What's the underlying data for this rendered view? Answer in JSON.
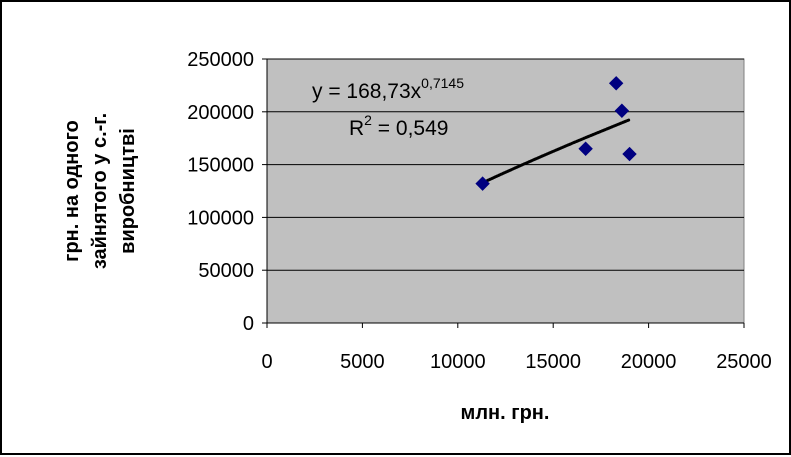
{
  "colors": {
    "plot_background": "#c0c0c0",
    "gridline": "#000000",
    "marker": "#000080",
    "trendline": "#000000",
    "border": "#000000"
  },
  "chart_data": {
    "type": "scatter",
    "title": "",
    "xlabel": "млн. грн.",
    "ylabel_lines": [
      "грн. на одного",
      "зайнятого у с.-г.",
      "виробництві"
    ],
    "xlim": [
      0,
      25000
    ],
    "ylim": [
      0,
      250000
    ],
    "x_ticks": [
      0,
      5000,
      10000,
      15000,
      20000,
      25000
    ],
    "y_ticks": [
      0,
      50000,
      100000,
      150000,
      200000,
      250000
    ],
    "x_tick_labels": [
      "0",
      "5000",
      "10000",
      "15000",
      "20000",
      "25000"
    ],
    "y_tick_labels": [
      "0",
      "50000",
      "100000",
      "150000",
      "200000",
      "250000"
    ],
    "grid": "horizontal",
    "legend": "none",
    "marker": "diamond",
    "points": [
      {
        "x": 11300,
        "y": 132000
      },
      {
        "x": 16700,
        "y": 165000
      },
      {
        "x": 18300,
        "y": 227000
      },
      {
        "x": 18600,
        "y": 201000
      },
      {
        "x": 19000,
        "y": 160000
      }
    ],
    "trendline": {
      "type": "power",
      "coefficient": 168.73,
      "exponent": 0.7145,
      "x_from": 11300,
      "x_to": 19000
    },
    "equation": {
      "prefix": "y = 168,73x",
      "exponent_text": "0,7145",
      "r2_prefix": "R",
      "r2_sup": "2",
      "r2_value": " = 0,549"
    }
  }
}
